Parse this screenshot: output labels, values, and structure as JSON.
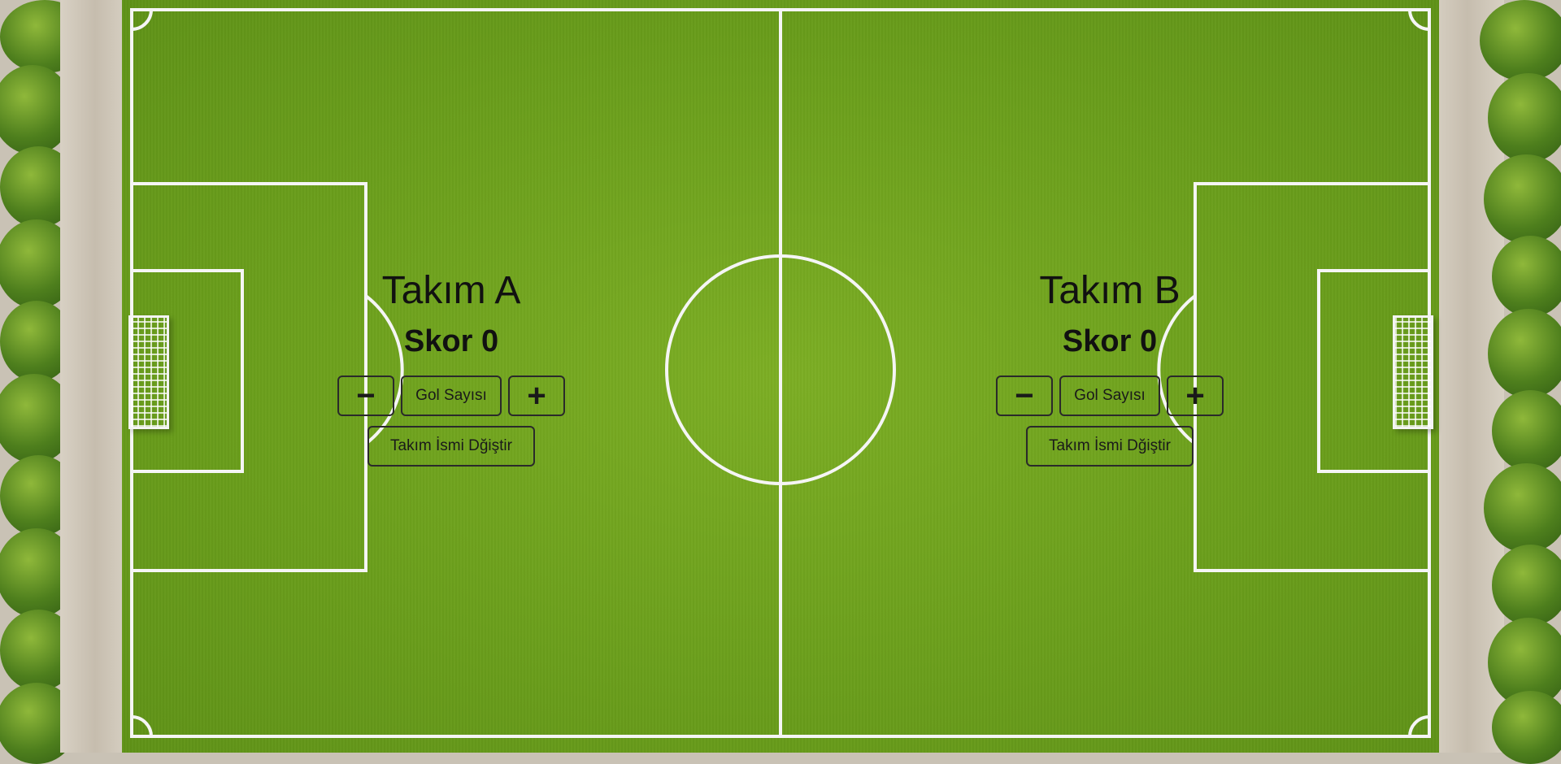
{
  "team_a": {
    "name": "Takım A",
    "score_label": "Skor 0",
    "decrement": "−",
    "goal_label": "Gol Sayısı",
    "increment": "+",
    "rename_label": "Takım İsmi Dğiştir"
  },
  "team_b": {
    "name": "Takım B",
    "score_label": "Skor 0",
    "decrement": "−",
    "goal_label": "Gol Sayısı",
    "increment": "+",
    "rename_label": "Takım İsmi Dğiştir"
  },
  "colors": {
    "grass": "#6b9f1c",
    "line": "#ffffff",
    "text": "#111111"
  }
}
